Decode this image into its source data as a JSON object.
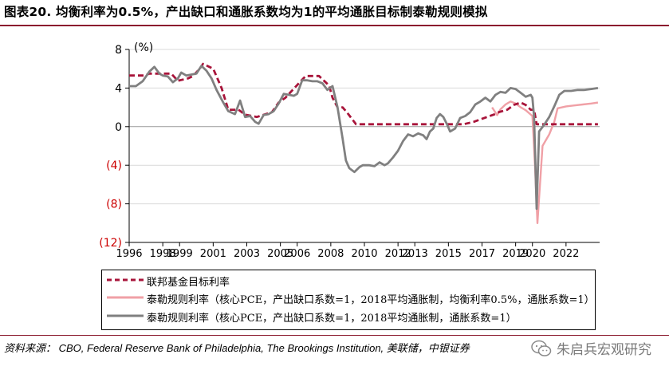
{
  "title": "图表20. 均衡利率为0.5%，产出缺口和通胀系数均为1的平均通胀目标制泰勒规则模拟",
  "source": "资料来源： CBO, Federal Reserve Bank of Philadelphia, The Brookings Institution, 美联储，中银证券",
  "watermark": "朱启兵宏观研究",
  "colors": {
    "fed": "#a8143a",
    "avg": "#f0a0a6",
    "taylor": "#808080",
    "accent": "#8b1a2e"
  },
  "chart_data": {
    "type": "line",
    "ylabel": "(%)",
    "ylim": [
      -12,
      8
    ],
    "yticks": [
      8,
      4,
      0,
      -4,
      -8,
      -12
    ],
    "ytick_labels": [
      "8",
      "4",
      "0",
      "(4)",
      "(8)",
      "(12)"
    ],
    "xlim": [
      1996,
      2024.0
    ],
    "xticks": [
      1996,
      1998,
      1999,
      2001,
      2003,
      2005,
      2006,
      2008,
      2010,
      2012,
      2013,
      2015,
      2017,
      2019,
      2020,
      2022
    ],
    "xtick_labels": [
      "1996",
      "1998",
      "1999",
      "2001",
      "2003",
      "2005",
      "2006",
      "2008",
      "2010",
      "2012",
      "2013",
      "2015",
      "2017",
      "2019",
      "2020",
      "2022"
    ],
    "series": [
      {
        "name": "联邦基金目标利率",
        "style": "dashed",
        "x": [
          1996.0,
          1996.9,
          1997.2,
          1998.5,
          1998.9,
          1999.5,
          1999.8,
          2000.2,
          2000.4,
          2001.0,
          2001.5,
          2001.9,
          2002.5,
          2002.9,
          2003.6,
          2004.5,
          2004.9,
          2005.3,
          2005.7,
          2006.1,
          2006.5,
          2007.3,
          2007.6,
          2007.9,
          2008.1,
          2008.4,
          2008.7,
          2008.95,
          2009.5,
          2015.9,
          2016.5,
          2016.9,
          2017.3,
          2017.7,
          2018.0,
          2018.5,
          2018.9,
          2019.3,
          2019.6,
          2019.9,
          2020.1,
          2020.25,
          2023.9
        ],
        "y": [
          5.3,
          5.3,
          5.5,
          5.5,
          4.75,
          5.0,
          5.25,
          6.0,
          6.5,
          6.0,
          4.0,
          1.75,
          1.75,
          1.25,
          1.0,
          1.5,
          2.5,
          3.0,
          3.75,
          4.5,
          5.25,
          5.25,
          4.75,
          4.25,
          3.0,
          2.0,
          2.0,
          1.5,
          0.25,
          0.25,
          0.5,
          0.75,
          1.0,
          1.25,
          1.5,
          1.75,
          2.25,
          2.5,
          2.25,
          1.75,
          1.75,
          0.25,
          0.25
        ]
      },
      {
        "name": "泰勒规则利率（核心PCE，产出缺口系数=1，2018平均通胀制，均衡利率0.5%，通胀系数=1）",
        "style": "solid",
        "x": [
          2017.6,
          2017.9,
          2018.1,
          2018.4,
          2018.7,
          2019.0,
          2019.3,
          2019.6,
          2019.8,
          2020.0,
          2020.15,
          2020.3,
          2020.6,
          2021.0,
          2021.3,
          2021.5,
          2022.0,
          2022.5,
          2023.0,
          2023.5,
          2023.9
        ],
        "y": [
          2.0,
          1.2,
          1.8,
          2.3,
          2.6,
          2.4,
          2.0,
          1.7,
          1.4,
          1.1,
          -4.0,
          -10.0,
          -2.0,
          -0.8,
          0.5,
          1.9,
          2.1,
          2.2,
          2.3,
          2.4,
          2.5
        ]
      },
      {
        "name": "泰勒规则利率（核心PCE，产出缺口系数=1，2018平均通胀制，通胀系数=1）",
        "style": "solid",
        "x": [
          1996.0,
          1996.4,
          1996.8,
          1997.2,
          1997.5,
          1997.8,
          1998.0,
          1998.3,
          1998.6,
          1998.9,
          1999.1,
          1999.4,
          1999.7,
          2000.0,
          2000.3,
          2000.6,
          2000.9,
          2001.2,
          2001.6,
          2001.9,
          2002.3,
          2002.6,
          2002.9,
          2003.2,
          2003.5,
          2003.7,
          2004.0,
          2004.3,
          2004.6,
          2004.9,
          2005.2,
          2005.5,
          2005.8,
          2006.0,
          2006.3,
          2006.6,
          2006.9,
          2007.2,
          2007.5,
          2007.8,
          2008.1,
          2008.4,
          2008.7,
          2008.9,
          2009.1,
          2009.4,
          2009.7,
          2009.9,
          2010.3,
          2010.6,
          2010.9,
          2011.2,
          2011.4,
          2011.7,
          2012.0,
          2012.3,
          2012.6,
          2012.9,
          2013.2,
          2013.5,
          2013.7,
          2013.9,
          2014.1,
          2014.3,
          2014.5,
          2014.7,
          2014.9,
          2015.1,
          2015.4,
          2015.7,
          2016.0,
          2016.3,
          2016.6,
          2016.9,
          2017.2,
          2017.5,
          2017.8,
          2018.1,
          2018.4,
          2018.7,
          2019.0,
          2019.3,
          2019.6,
          2019.9,
          2020.0,
          2020.1,
          2020.25,
          2020.4,
          2020.7,
          2021.0,
          2021.3,
          2021.6,
          2021.9,
          2022.3,
          2022.7,
          2023.1,
          2023.5,
          2023.9
        ],
        "y": [
          4.2,
          4.2,
          4.7,
          5.7,
          6.2,
          5.5,
          5.3,
          5.2,
          4.6,
          5.0,
          5.6,
          5.3,
          5.4,
          5.5,
          6.3,
          5.8,
          5.0,
          3.8,
          2.5,
          1.6,
          1.3,
          2.7,
          1.0,
          1.1,
          0.5,
          0.3,
          1.2,
          1.3,
          1.6,
          2.4,
          3.4,
          3.3,
          3.2,
          3.4,
          4.8,
          4.8,
          4.7,
          4.7,
          4.5,
          3.8,
          4.2,
          2.0,
          -1.2,
          -3.5,
          -4.3,
          -4.7,
          -4.2,
          -4.0,
          -4.0,
          -4.1,
          -3.7,
          -4.0,
          -3.8,
          -3.2,
          -2.5,
          -1.5,
          -0.8,
          -1.0,
          -0.7,
          -0.9,
          -1.3,
          -0.5,
          -0.2,
          0.9,
          1.3,
          1.0,
          0.3,
          -0.5,
          -0.2,
          0.9,
          1.1,
          1.5,
          2.3,
          2.6,
          3.0,
          2.6,
          3.3,
          3.6,
          3.5,
          4.0,
          3.9,
          3.5,
          3.1,
          3.3,
          3.0,
          1.0,
          -8.5,
          -0.5,
          0.2,
          1.0,
          2.1,
          3.3,
          3.7,
          3.7,
          3.8,
          3.8,
          3.9,
          4.0
        ]
      }
    ]
  }
}
